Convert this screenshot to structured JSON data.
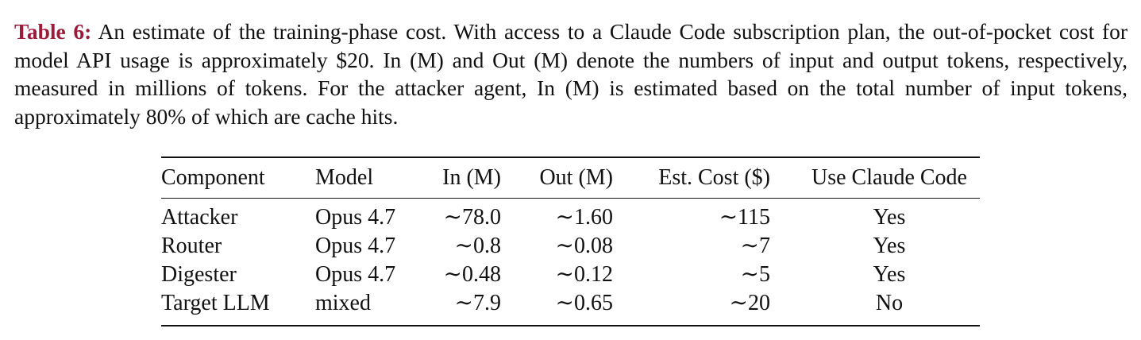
{
  "caption": {
    "label": "Table 6:",
    "text": "An estimate of the training-phase cost. With access to a Claude Code subscription plan, the out-of-pocket cost for model API usage is approximately $20. In (M) and Out (M) denote the numbers of input and output tokens, respectively, measured in millions of tokens. For the attacker agent, In (M) is estimated based on the total number of input tokens, approximately 80% of which are cache hits."
  },
  "table": {
    "header": [
      "Component",
      "Model",
      "In (M)",
      "Out (M)",
      "Est. Cost ($)",
      "Use Claude Code"
    ],
    "rows": [
      [
        "Attacker",
        "Opus 4.7",
        "∼78.0",
        "∼1.60",
        "∼115",
        "Yes"
      ],
      [
        "Router",
        "Opus 4.7",
        "∼0.8",
        "∼0.08",
        "∼7",
        "Yes"
      ],
      [
        "Digester",
        "Opus 4.7",
        "∼0.48",
        "∼0.12",
        "∼5",
        "Yes"
      ],
      [
        "Target LLM",
        "mixed",
        "∼7.9",
        "∼0.65",
        "∼20",
        "No"
      ]
    ]
  }
}
